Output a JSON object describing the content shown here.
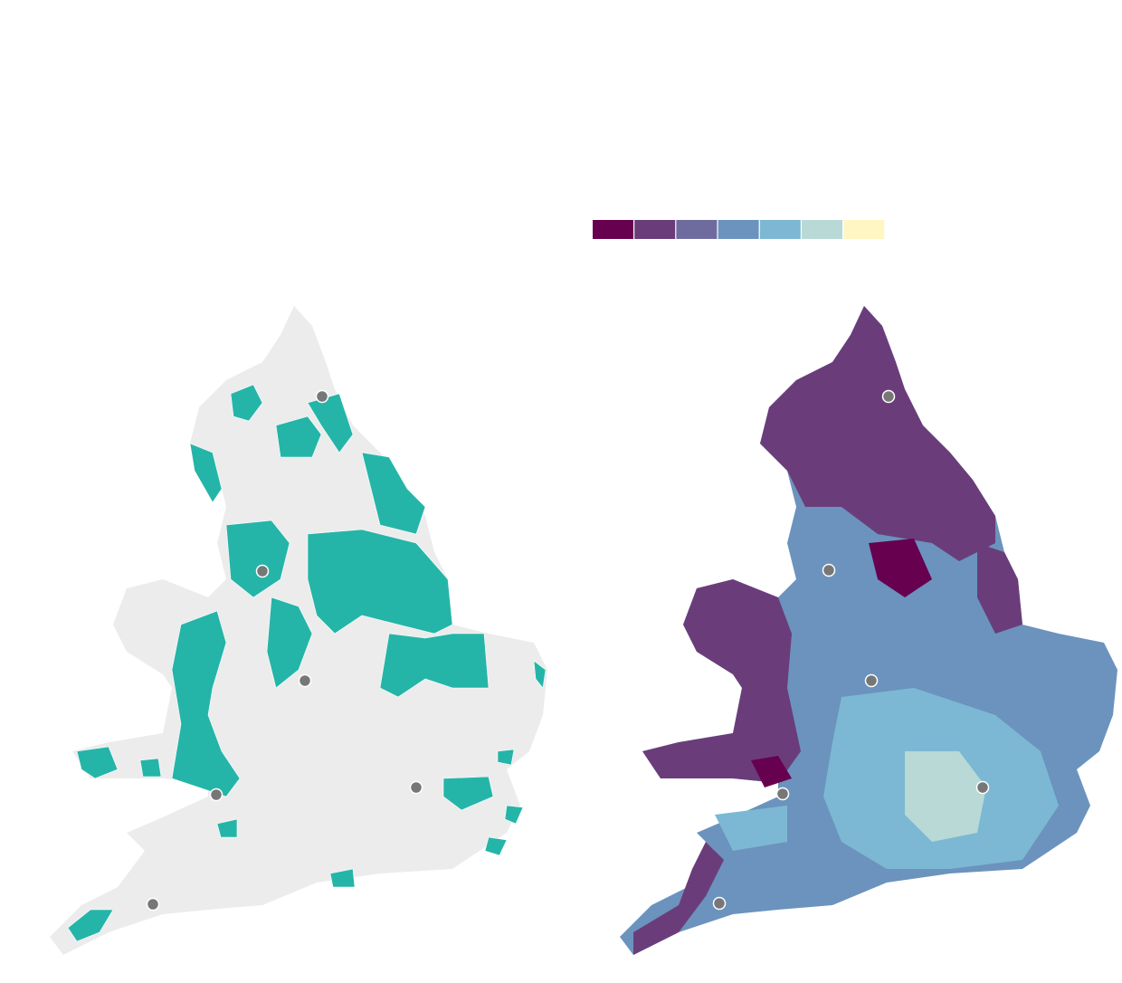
{
  "legend": {
    "colors": [
      "#67004f",
      "#6a3d7a",
      "#6e6c9e",
      "#6b93bd",
      "#7cb8d3",
      "#b8d9d6",
      "#fff6c4"
    ]
  }
}
